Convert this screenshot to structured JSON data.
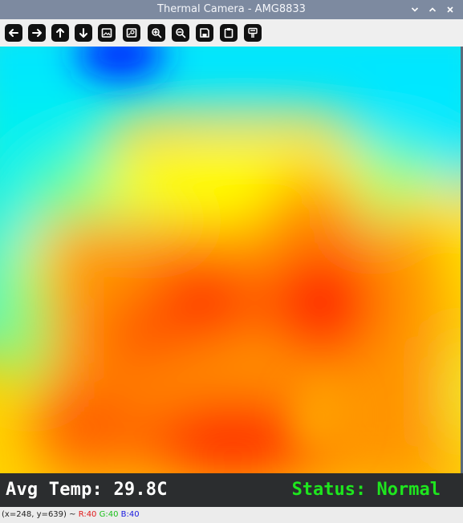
{
  "window": {
    "title": "Thermal Camera - AMG8833",
    "minimize_icon": "chevron-down-icon",
    "maximize_icon": "chevron-up-icon",
    "close_icon": "close-icon"
  },
  "toolbar": {
    "buttons": [
      {
        "name": "pan-left-button",
        "icon": "arrow-left-icon"
      },
      {
        "name": "pan-right-button",
        "icon": "arrow-right-icon"
      },
      {
        "name": "pan-up-button",
        "icon": "arrow-up-icon"
      },
      {
        "name": "pan-down-button",
        "icon": "arrow-down-icon"
      },
      {
        "name": "zoom-fit-button",
        "icon": "image-icon"
      },
      {
        "name": "zoom-original-button",
        "icon": "image-zoom-icon"
      },
      {
        "name": "zoom-in-button",
        "icon": "zoom-in-icon"
      },
      {
        "name": "zoom-out-button",
        "icon": "zoom-out-icon"
      },
      {
        "name": "save-button",
        "icon": "save-icon"
      },
      {
        "name": "copy-button",
        "icon": "clipboard-icon"
      },
      {
        "name": "properties-button",
        "icon": "properties-icon"
      }
    ]
  },
  "overlay": {
    "avg_label": "Avg Temp: 29.8C",
    "status_label": "Status: Normal",
    "avg_color": "#ffffff",
    "status_color": "#1ee61e"
  },
  "readout": {
    "coords": "(x=248, y=639) ~",
    "r": "R:40",
    "g": "G:40",
    "b": "B:40"
  },
  "colors": {
    "titlebar": "#7d8aa0",
    "statusbar": "#2b2d2f",
    "heat_hot": "#ff2a00",
    "heat_warm": "#ff8a00",
    "heat_mid": "#ffff00",
    "heat_cool": "#00e6ff",
    "heat_cold": "#0022ff"
  }
}
